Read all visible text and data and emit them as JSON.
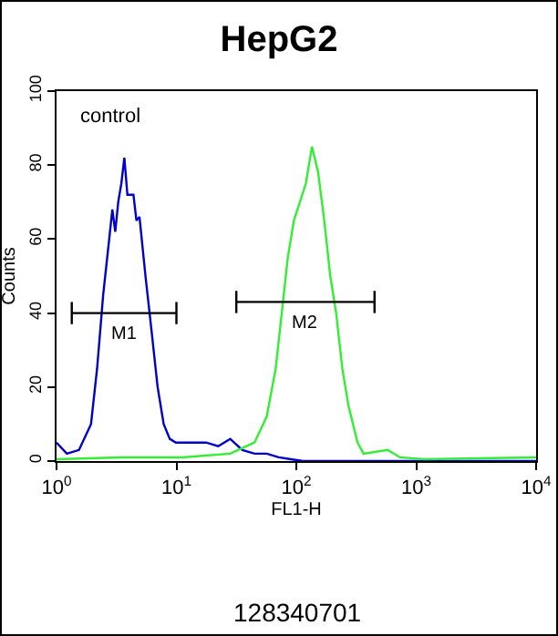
{
  "chart_data": {
    "type": "line",
    "title": "HepG2",
    "xlabel": "FL1-H",
    "ylabel": "Counts",
    "log": "x",
    "marker": "none",
    "xlim": [
      1,
      10000
    ],
    "ylim": [
      0,
      100
    ],
    "xticks": [
      {
        "value": 1,
        "label": "10$^{0}$"
      },
      {
        "value": 10,
        "label": "10$^{1}$"
      },
      {
        "value": 100,
        "label": "10$^{2}$"
      },
      {
        "value": 1000,
        "label": "10$^{3}$"
      },
      {
        "value": 10000,
        "label": "10$^{4}$"
      }
    ],
    "yticks": [
      0,
      20,
      40,
      60,
      80,
      100
    ],
    "annotations": [
      "control",
      "128340701",
      {
        "text": "M1",
        "x": 3.66,
        "y": 40
      },
      {
        "text": "M2",
        "x": 119,
        "y": 43
      }
    ],
    "series": [
      {
        "color": "#0000cc",
        "x": [
          1,
          1.22,
          1.54,
          1.94,
          2.18,
          2.45,
          2.75,
          2.92,
          3.09,
          3.27,
          3.47,
          3.68,
          3.9,
          4.38,
          4.64,
          4.92,
          5.52,
          6.21,
          6.97,
          7.83,
          8.8,
          9.89,
          11.1,
          14,
          17.7,
          22.3,
          28.1,
          35.5,
          44.8,
          56.6,
          71.4,
          90.1,
          114,
          364,
          10000
        ],
        "values": [
          5,
          2,
          3,
          10,
          25,
          45,
          60,
          68,
          62,
          70,
          75,
          82,
          72,
          72,
          65,
          66,
          50,
          35,
          20,
          10,
          6,
          5,
          5,
          5,
          5,
          4,
          6,
          3,
          2,
          2,
          1,
          0.5,
          0,
          0,
          0
        ]
      },
      {
        "color": "#33ee33",
        "x": [
          1,
          3.47,
          11.1,
          28.1,
          44.8,
          56.6,
          67.3,
          75.6,
          84.9,
          95.4,
          107,
          120,
          135,
          152,
          171,
          192,
          215,
          242,
          272,
          324,
          364,
          579,
          731,
          1164,
          10000
        ],
        "values": [
          0.5,
          1,
          1,
          2,
          5,
          12,
          25,
          40,
          55,
          65,
          70,
          75,
          85,
          78,
          65,
          50,
          40,
          25,
          15,
          5,
          2,
          3,
          1,
          0.5,
          1
        ]
      },
      {
        "color": "#000000",
        "x": [
          1.34,
          10
        ],
        "values": [
          40,
          40
        ],
        "errors": [
          3,
          3
        ]
      },
      {
        "color": "#000000",
        "x": [
          31.6,
          449
        ],
        "values": [
          43,
          43
        ],
        "errors": [
          3,
          3
        ]
      }
    ]
  }
}
